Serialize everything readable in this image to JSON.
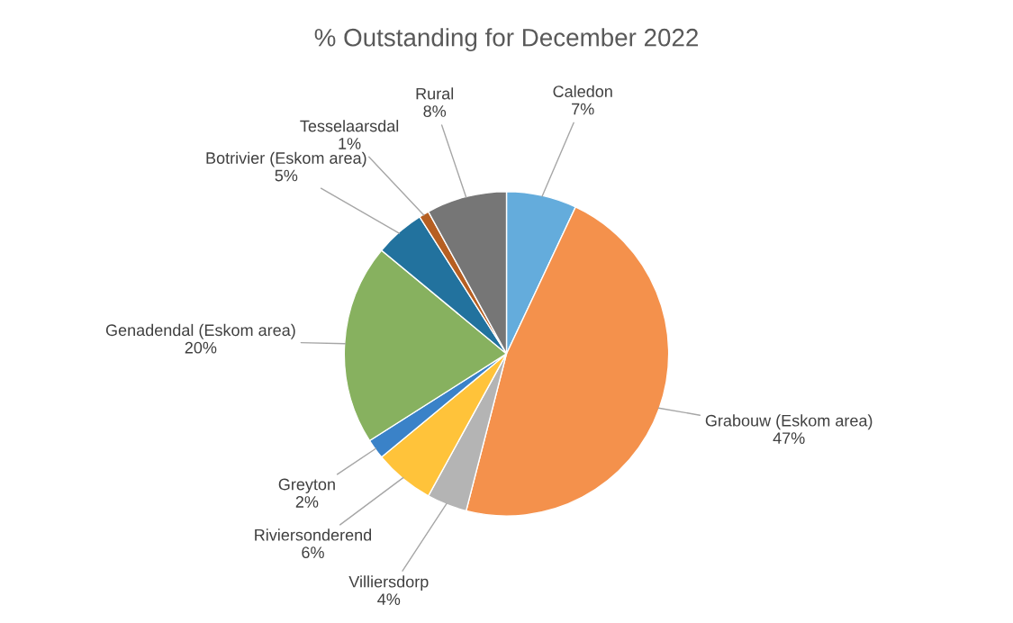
{
  "chart_data": {
    "type": "pie",
    "title": "% Outstanding for December 2022",
    "categories": [
      "Caledon",
      "Grabouw (Eskom area)",
      "Villiersdorp",
      "Riviersonderend",
      "Greyton",
      "Genadendal (Eskom area)",
      "Botrivier (Eskom area)",
      "Tesselaarsdal",
      "Rural"
    ],
    "values": [
      7,
      47,
      4,
      6,
      2,
      20,
      5,
      1,
      8
    ],
    "colors": [
      "#64acdc",
      "#f4914c",
      "#b4b4b4",
      "#ffc33a",
      "#3a82c8",
      "#87b15f",
      "#22729e",
      "#b65f22",
      "#767676"
    ],
    "value_labels": [
      "7%",
      "47%",
      "4%",
      "6%",
      "2%",
      "20%",
      "5%",
      "1%",
      "8%"
    ],
    "legend": false
  }
}
